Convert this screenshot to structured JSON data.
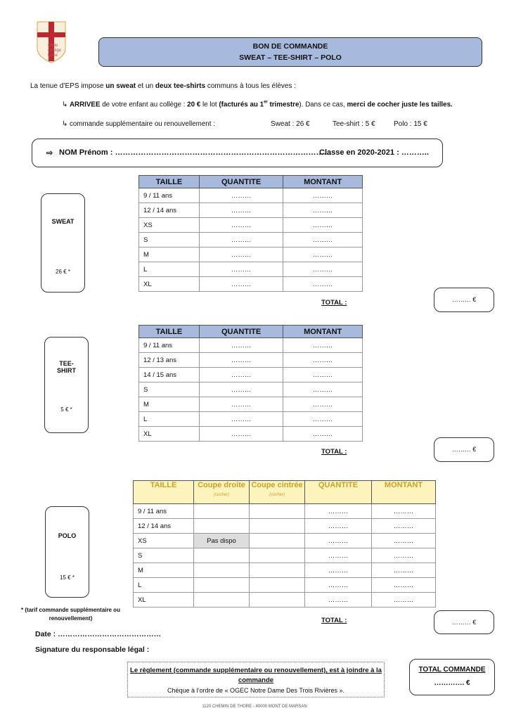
{
  "logo": {
    "text": [
      "école",
      "collège",
      "lycée"
    ],
    "colors": {
      "cross": "#c0262d",
      "accent": "#d9a441"
    }
  },
  "header": {
    "line1": "BON DE COMMANDE",
    "line2": "SWEAT – TEE-SHIRT – POLO",
    "color": "#a7b9dd"
  },
  "intro": {
    "t1": "La tenue d’EPS impose ",
    "b1": "un sweat",
    "t2": " et un ",
    "b2": "deux tee-shirts",
    "t3": " communs à tous les élèves :"
  },
  "bullet1": {
    "icon": "arrow-hook-icon",
    "b1": "ARRIVEE",
    "t1": " de votre enfant au collège : ",
    "b2": "20 €",
    "t2": " le lot ",
    "b3": "(facturés au 1",
    "sup": "er",
    "b4": " trimestre",
    "t3": "). Dans ce cas, ",
    "b5": "merci de cocher juste les tailles."
  },
  "bullet2": {
    "icon": "arrow-hook-icon",
    "text": "commande supplémentaire ou renouvellement :",
    "sweat": "Sweat : 26 €",
    "tee": "Tee-shirt : 5 €",
    "polo": "Polo : 15 €"
  },
  "name_box": {
    "arrow": "⇨",
    "label": "NOM Prénom : …………………………………………………………………………",
    "classe": "Classe en 2020-2021 : ……….."
  },
  "headers": {
    "taille": "TAILLE",
    "quantite": "QUANTITE",
    "montant": "MONTANT",
    "coupe_droite": "Coupe droite",
    "coupe_cintree": "Coupe cintrée",
    "cocher": "(cocher)"
  },
  "dots": "………",
  "total_label": "TOTAL :",
  "total_value": "……… €",
  "sweat": {
    "label": "SWEAT",
    "price": "26 € *",
    "sizes": [
      "9 / 11 ans",
      "12 / 14 ans",
      "XS",
      "S",
      "M",
      "L",
      "XL"
    ]
  },
  "tee": {
    "label": "TEE-SHIRT",
    "price": "5 € *",
    "sizes": [
      "9 / 11 ans",
      "12 / 13 ans",
      "14 / 15 ans",
      "S",
      "M",
      "L",
      "XL"
    ]
  },
  "polo": {
    "label": "POLO",
    "price": "15 € *",
    "sizes": [
      "9 / 11 ans",
      "12 / 14 ans",
      "XS",
      "S",
      "M",
      "L",
      "XL"
    ],
    "pas_dispo": "Pas dispo"
  },
  "footnote": "* (tarif commande supplémentaire ou renouvellement)",
  "date": "Date : ……………………………………",
  "signature": "Signature du responsable légal :",
  "payment": {
    "line1": "Le règlement (commande supplémentaire ou renouvellement), est à joindre à la commande",
    "line2": "Chèque à l’ordre de « OGEC Notre Dame Des Trois Rivières »."
  },
  "total_commande": {
    "label": "TOTAL COMMANDE",
    "value": "…………. €"
  },
  "address": "1120 CHEMIN DE THORE - 40000 MONT DE MARSAN"
}
